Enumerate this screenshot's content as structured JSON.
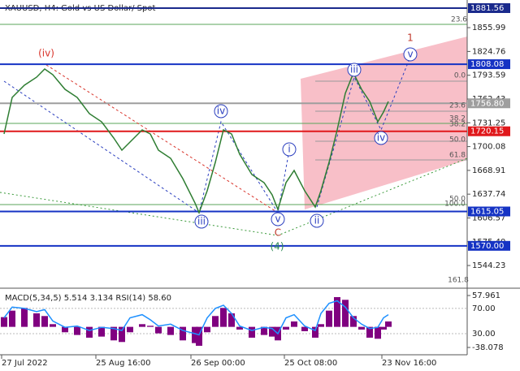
{
  "chart_data": [
    {
      "type": "line",
      "title": "XAUUSD, H4:  Gold vs US Dollar/ Spot",
      "x": [
        0,
        10,
        25,
        40,
        50,
        60,
        75,
        90,
        105,
        120,
        135,
        145,
        155,
        170,
        180,
        190,
        205,
        220,
        235,
        240,
        250,
        260,
        270,
        280,
        290,
        305,
        320,
        330,
        337,
        347,
        357,
        370,
        383,
        390,
        400,
        410,
        420,
        430,
        440,
        450,
        460,
        467,
        473
      ],
      "values": [
        1716.6,
        1764.5,
        1780.5,
        1791,
        1801.8,
        1794.3,
        1775.2,
        1764.5,
        1743.2,
        1732.6,
        1711.3,
        1695.4,
        1706,
        1722,
        1716.6,
        1695.4,
        1684.7,
        1658.1,
        1626.2,
        1613.4,
        1642.2,
        1679.4,
        1722,
        1716.6,
        1690,
        1663.4,
        1652.8,
        1636.8,
        1617.7,
        1652.8,
        1668.8,
        1642.2,
        1620.9,
        1642.2,
        1679.4,
        1722,
        1769.8,
        1796.4,
        1775.2,
        1759.2,
        1732.6,
        1745.4,
        1759.2
      ],
      "color": "#2e7d32",
      "xlim": [
        -5,
        570
      ],
      "xticks": [
        {
          "value": -3,
          "label": "27 Jul 2022"
        },
        {
          "value": 113,
          "label": "25 Aug 16:00"
        },
        {
          "value": 230,
          "label": "26 Sep 00:00"
        },
        {
          "value": 345,
          "label": "25 Oct 08:00"
        },
        {
          "value": 465,
          "label": "23 Nov 16:00"
        }
      ],
      "ylim": [
        1514.5,
        1892.2
      ],
      "yticks": [
        1855.99,
        1824.76,
        1793.59,
        1762.43,
        1731.25,
        1700.08,
        1668.91,
        1637.74,
        1606.57,
        {
          "value": 1575.4,
          "label": "1575.40"
        },
        1544.23
      ],
      "levels": [
        {
          "value": 1881.56,
          "label": "1881.56",
          "color": "#1a2a8c"
        },
        {
          "value": 1808.08,
          "label": "1808.08",
          "color": "#1533c4"
        },
        {
          "value": 1756.8,
          "label": "1756.80",
          "color": "#9e9e9e"
        },
        {
          "value": 1720.15,
          "label": "1720.15",
          "color": "#e0181b"
        },
        {
          "value": 1615.05,
          "label": "1615.05",
          "color": "#1533c4"
        },
        {
          "value": 1570,
          "label": "1570.00",
          "color": "#1533c4"
        }
      ],
      "annotations": [
        {
          "text": "(iv)",
          "color": "#d9342b"
        },
        {
          "text": "iv",
          "color": "#2b3fbf"
        },
        {
          "text": "i",
          "color": "#2b3fbf"
        },
        {
          "text": "iii",
          "color": "#2b3fbf"
        },
        {
          "text": "v",
          "color": "#2b3fbf"
        },
        {
          "text": "iv",
          "color": "#2b3fbf"
        },
        {
          "text": "iii",
          "color": "#2b3fbf"
        },
        {
          "text": "v",
          "color": "#2b3fbf"
        },
        {
          "text": "ii",
          "color": "#2b3fbf"
        },
        {
          "text": "1",
          "color": "#c0392b"
        },
        {
          "text": "C",
          "color": "#c0392b"
        },
        {
          "text": "(4)",
          "color": "#2e8b57"
        }
      ],
      "fib_labels": [
        "23.6",
        "0.0",
        "23.6",
        "38.2",
        "38.2",
        "50.0",
        "61.8",
        "50.0",
        "100.0",
        "161.8"
      ]
    },
    {
      "type": "indicator",
      "title": "MACD(5,34,5) 5.514 3.134 RSI(14) 58.60",
      "x": [
        0,
        10,
        25,
        40,
        50,
        60,
        75,
        90,
        105,
        120,
        135,
        145,
        155,
        170,
        180,
        190,
        205,
        220,
        235,
        240,
        250,
        260,
        270,
        280,
        290,
        305,
        320,
        330,
        337,
        347,
        357,
        370,
        383,
        390,
        400,
        410,
        420,
        430,
        440,
        450,
        460,
        467,
        473
      ],
      "series": [
        {
          "color": "#800080",
          "values": [
            18,
            30,
            35,
            25,
            20,
            5,
            -10,
            -15,
            -20,
            -18,
            -25,
            -28,
            -10,
            5,
            2,
            -12,
            -15,
            -25,
            -30,
            -35,
            -10,
            20,
            35,
            25,
            -5,
            -20,
            -15,
            -18,
            -25,
            -5,
            10,
            -8,
            -20,
            5,
            30,
            55,
            50,
            20,
            -5,
            -20,
            -22,
            -5,
            10
          ]
        },
        {
          "color": "#1e90ff",
          "axis": "y2",
          "values": [
            55,
            72,
            70,
            65,
            68,
            50,
            40,
            42,
            35,
            40,
            38,
            35,
            55,
            60,
            52,
            42,
            45,
            35,
            30,
            28,
            55,
            70,
            75,
            62,
            42,
            35,
            40,
            38,
            30,
            55,
            60,
            42,
            35,
            62,
            78,
            82,
            72,
            55,
            45,
            38,
            40,
            55,
            60
          ]
        }
      ],
      "xlim": [
        -5,
        570
      ],
      "ylim": [
        -51.6,
        71.5
      ],
      "yticks": [
        57.961,
        -38.078
      ],
      "y2lim": [
        -3.5,
        102
      ],
      "y2ticks": [
        {
          "value": 70,
          "label": "70.00"
        },
        {
          "value": 30,
          "label": "30.00"
        }
      ]
    }
  ]
}
